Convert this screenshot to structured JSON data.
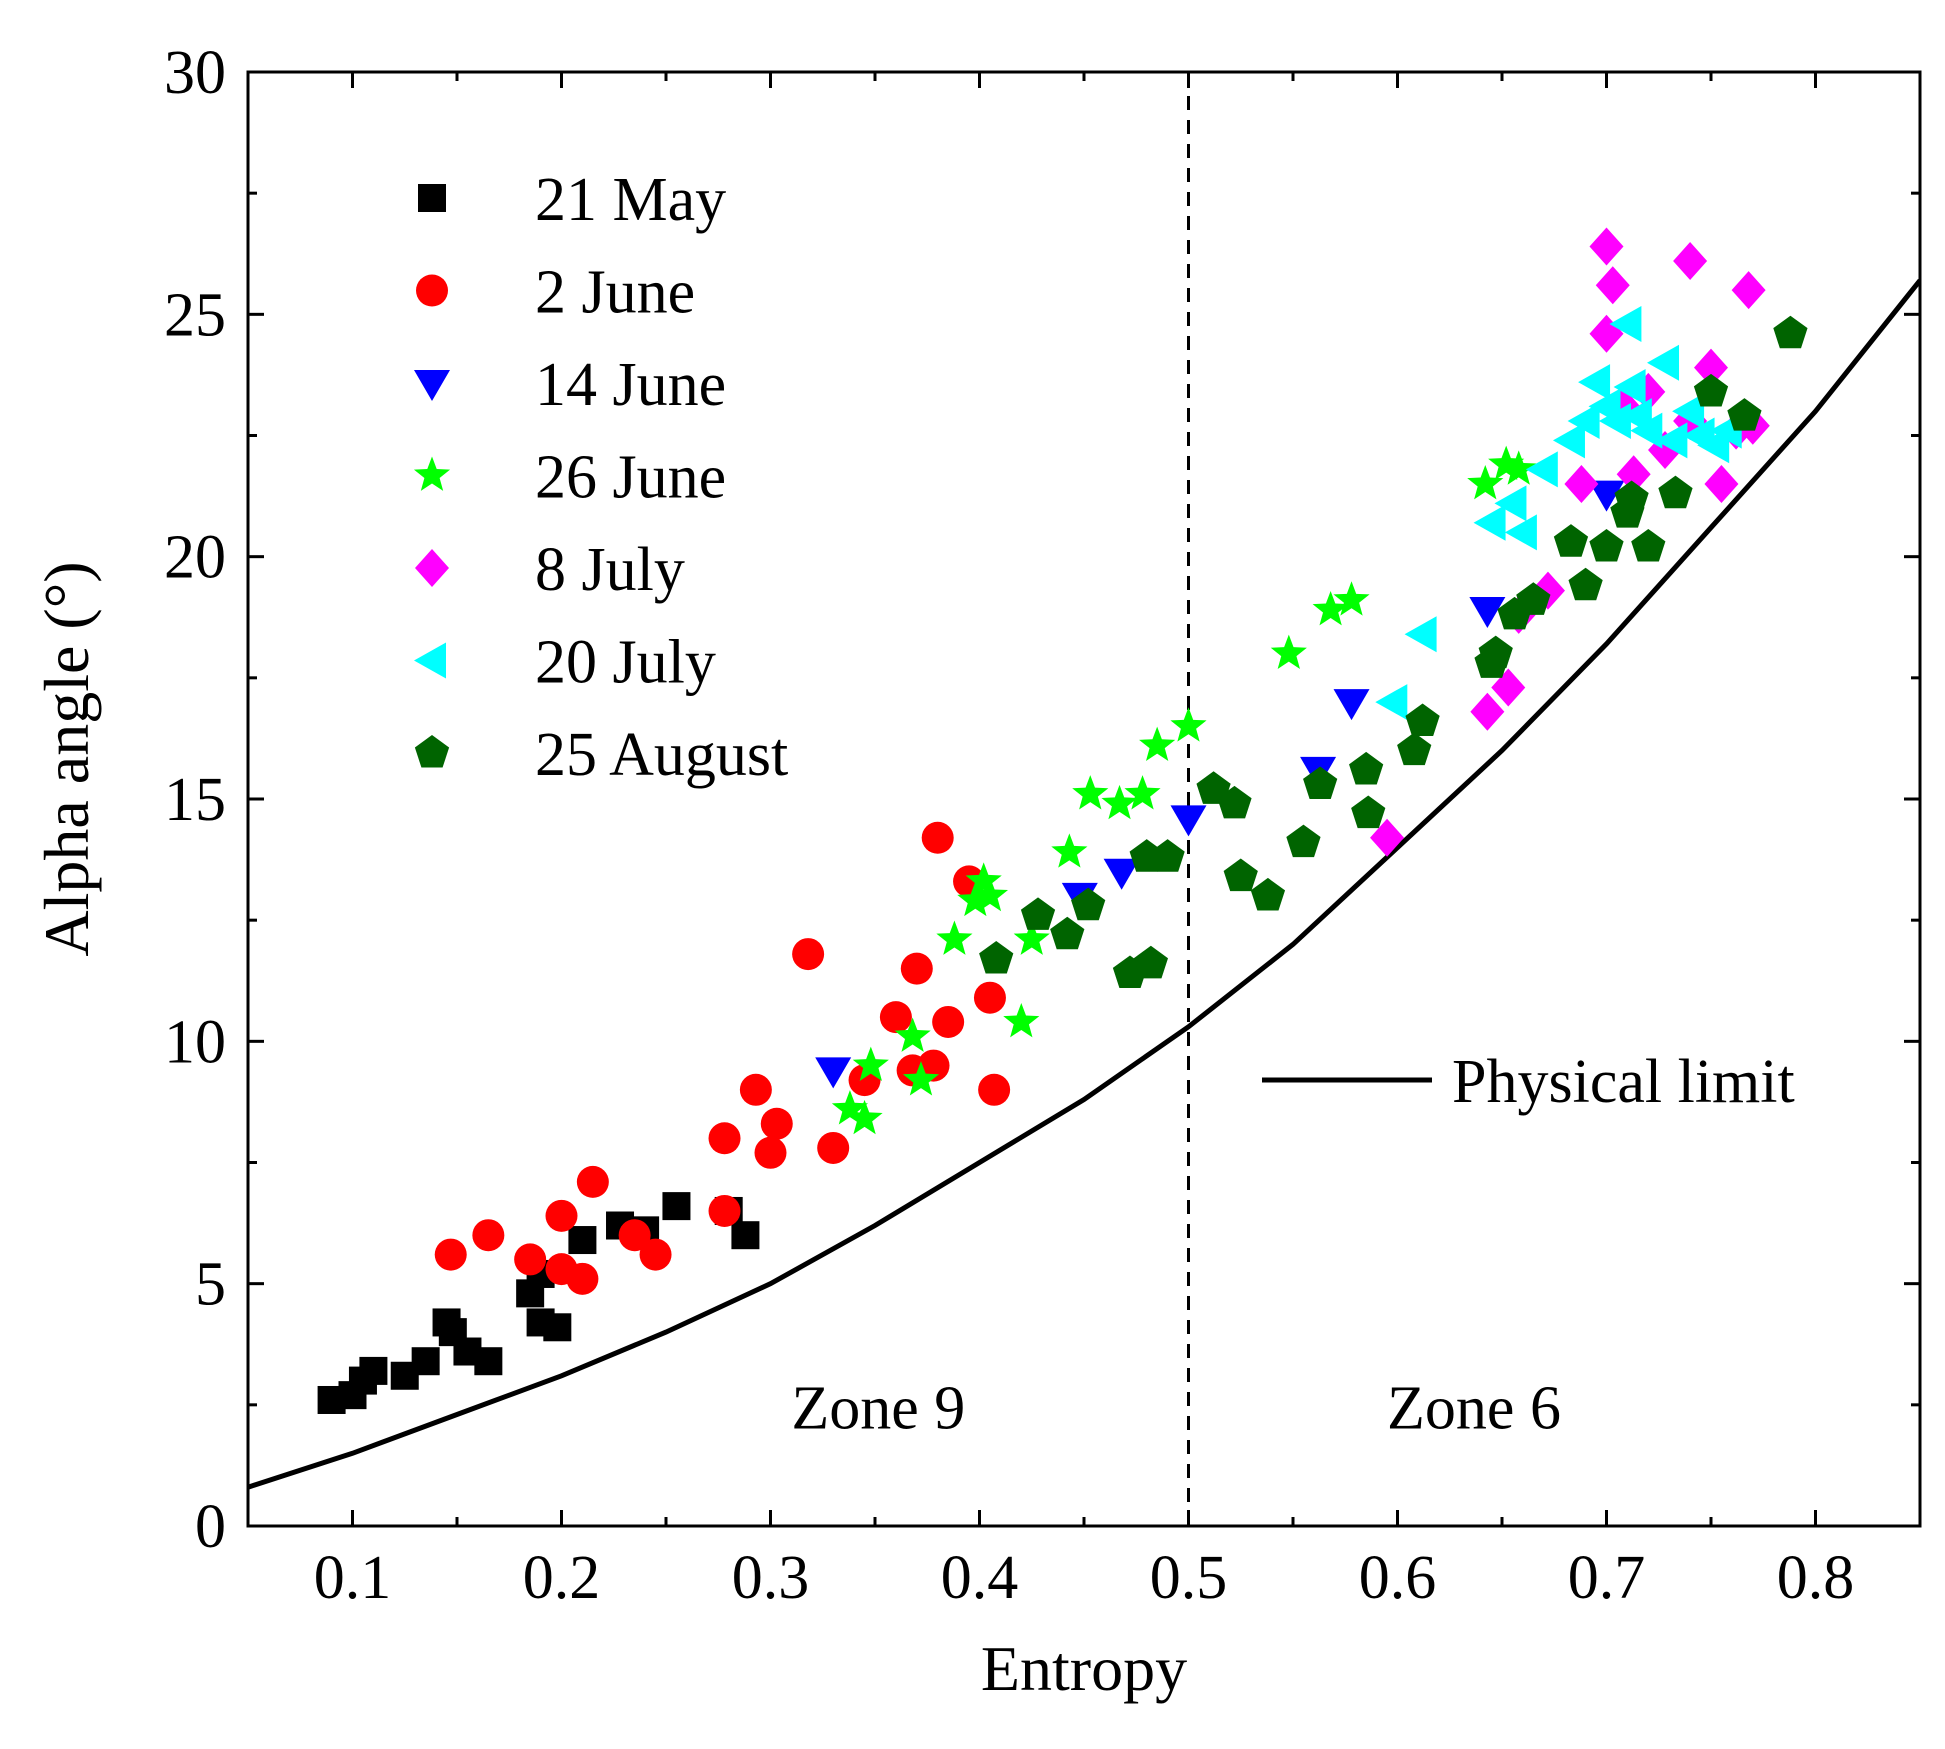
{
  "chart_data": {
    "type": "scatter",
    "xlabel": "Entropy",
    "ylabel": "Alpha angle (°)",
    "xlim": [
      0.05,
      0.85
    ],
    "ylim": [
      0,
      30
    ],
    "xticks": [
      0.1,
      0.2,
      0.3,
      0.4,
      0.5,
      0.6,
      0.7,
      0.8
    ],
    "xtick_labels": [
      "0.1",
      "0.2",
      "0.3",
      "0.4",
      "0.5",
      "0.6",
      "0.7",
      "0.8"
    ],
    "yticks": [
      0,
      5,
      10,
      15,
      20,
      25,
      30
    ],
    "ytick_labels": [
      "0",
      "5",
      "10",
      "15",
      "20",
      "25",
      "30"
    ],
    "legend_position": "top-left",
    "series": [
      {
        "name": "21 May",
        "marker": "square",
        "color": "#000000",
        "points": [
          [
            0.09,
            2.6
          ],
          [
            0.1,
            2.7
          ],
          [
            0.105,
            3.0
          ],
          [
            0.11,
            3.2
          ],
          [
            0.125,
            3.1
          ],
          [
            0.135,
            3.4
          ],
          [
            0.145,
            4.2
          ],
          [
            0.148,
            4.0
          ],
          [
            0.155,
            3.6
          ],
          [
            0.165,
            3.4
          ],
          [
            0.185,
            4.8
          ],
          [
            0.19,
            5.2
          ],
          [
            0.19,
            4.2
          ],
          [
            0.198,
            4.1
          ],
          [
            0.21,
            5.9
          ],
          [
            0.228,
            6.2
          ],
          [
            0.24,
            6.1
          ],
          [
            0.255,
            6.6
          ],
          [
            0.28,
            6.5
          ],
          [
            0.288,
            6.0
          ]
        ]
      },
      {
        "name": "2 June",
        "marker": "circle",
        "color": "#ff0000",
        "points": [
          [
            0.147,
            5.6
          ],
          [
            0.165,
            6.0
          ],
          [
            0.185,
            5.5
          ],
          [
            0.2,
            6.4
          ],
          [
            0.2,
            5.3
          ],
          [
            0.21,
            5.1
          ],
          [
            0.215,
            7.1
          ],
          [
            0.235,
            6.0
          ],
          [
            0.245,
            5.6
          ],
          [
            0.278,
            8.0
          ],
          [
            0.278,
            6.5
          ],
          [
            0.293,
            9.0
          ],
          [
            0.3,
            7.7
          ],
          [
            0.303,
            8.3
          ],
          [
            0.318,
            11.8
          ],
          [
            0.33,
            7.8
          ],
          [
            0.345,
            9.2
          ],
          [
            0.36,
            10.5
          ],
          [
            0.368,
            9.4
          ],
          [
            0.37,
            11.5
          ],
          [
            0.378,
            9.5
          ],
          [
            0.38,
            14.2
          ],
          [
            0.385,
            10.4
          ],
          [
            0.395,
            13.3
          ],
          [
            0.405,
            10.9
          ],
          [
            0.407,
            9.0
          ]
        ]
      },
      {
        "name": "14 June",
        "marker": "triangle-down",
        "color": "#0000ff",
        "points": [
          [
            0.33,
            9.4
          ],
          [
            0.448,
            13.0
          ],
          [
            0.468,
            13.5
          ],
          [
            0.5,
            14.6
          ],
          [
            0.562,
            15.6
          ],
          [
            0.578,
            17.0
          ],
          [
            0.643,
            18.9
          ],
          [
            0.7,
            21.3
          ]
        ]
      },
      {
        "name": "26 June",
        "marker": "star",
        "color": "#00ff00",
        "points": [
          [
            0.338,
            8.6
          ],
          [
            0.345,
            8.4
          ],
          [
            0.348,
            9.5
          ],
          [
            0.368,
            10.1
          ],
          [
            0.372,
            9.2
          ],
          [
            0.388,
            12.1
          ],
          [
            0.398,
            12.9
          ],
          [
            0.402,
            13.3
          ],
          [
            0.405,
            13.0
          ],
          [
            0.42,
            10.4
          ],
          [
            0.425,
            12.1
          ],
          [
            0.443,
            13.9
          ],
          [
            0.453,
            15.1
          ],
          [
            0.467,
            14.9
          ],
          [
            0.478,
            15.1
          ],
          [
            0.485,
            16.1
          ],
          [
            0.5,
            16.5
          ],
          [
            0.548,
            18.0
          ],
          [
            0.568,
            18.9
          ],
          [
            0.578,
            19.1
          ],
          [
            0.642,
            21.5
          ],
          [
            0.652,
            21.9
          ],
          [
            0.658,
            21.8
          ]
        ]
      },
      {
        "name": "8 July",
        "marker": "diamond",
        "color": "#ff00ff",
        "points": [
          [
            0.595,
            14.2
          ],
          [
            0.643,
            16.8
          ],
          [
            0.653,
            17.3
          ],
          [
            0.658,
            18.8
          ],
          [
            0.672,
            19.3
          ],
          [
            0.688,
            21.5
          ],
          [
            0.7,
            26.4
          ],
          [
            0.7,
            24.6
          ],
          [
            0.703,
            25.6
          ],
          [
            0.708,
            23.1
          ],
          [
            0.713,
            21.7
          ],
          [
            0.72,
            23.4
          ],
          [
            0.728,
            22.2
          ],
          [
            0.74,
            26.1
          ],
          [
            0.74,
            22.8
          ],
          [
            0.75,
            23.9
          ],
          [
            0.755,
            21.5
          ],
          [
            0.762,
            22.6
          ],
          [
            0.768,
            25.5
          ],
          [
            0.77,
            22.7
          ]
        ]
      },
      {
        "name": "20 July",
        "marker": "triangle-left",
        "color": "#00ffff",
        "points": [
          [
            0.598,
            17.0
          ],
          [
            0.612,
            18.4
          ],
          [
            0.645,
            20.7
          ],
          [
            0.655,
            21.1
          ],
          [
            0.66,
            20.5
          ],
          [
            0.67,
            21.8
          ],
          [
            0.683,
            22.4
          ],
          [
            0.69,
            22.8
          ],
          [
            0.695,
            23.6
          ],
          [
            0.7,
            23.1
          ],
          [
            0.705,
            22.8
          ],
          [
            0.71,
            24.8
          ],
          [
            0.712,
            23.5
          ],
          [
            0.715,
            22.9
          ],
          [
            0.72,
            22.6
          ],
          [
            0.728,
            24.0
          ],
          [
            0.732,
            22.4
          ],
          [
            0.74,
            23.0
          ],
          [
            0.745,
            22.5
          ],
          [
            0.752,
            22.3
          ],
          [
            0.758,
            22.6
          ]
        ]
      },
      {
        "name": "25 August",
        "marker": "pentagon",
        "color": "#006400",
        "points": [
          [
            0.408,
            11.7
          ],
          [
            0.428,
            12.6
          ],
          [
            0.442,
            12.2
          ],
          [
            0.452,
            12.8
          ],
          [
            0.472,
            11.4
          ],
          [
            0.482,
            11.6
          ],
          [
            0.48,
            13.8
          ],
          [
            0.49,
            13.8
          ],
          [
            0.512,
            15.2
          ],
          [
            0.522,
            14.9
          ],
          [
            0.525,
            13.4
          ],
          [
            0.538,
            13.0
          ],
          [
            0.555,
            14.1
          ],
          [
            0.563,
            15.3
          ],
          [
            0.585,
            15.6
          ],
          [
            0.586,
            14.7
          ],
          [
            0.608,
            16.0
          ],
          [
            0.612,
            16.6
          ],
          [
            0.645,
            17.8
          ],
          [
            0.647,
            18.0
          ],
          [
            0.656,
            18.8
          ],
          [
            0.665,
            19.1
          ],
          [
            0.683,
            20.3
          ],
          [
            0.69,
            19.4
          ],
          [
            0.7,
            20.2
          ],
          [
            0.71,
            20.9
          ],
          [
            0.712,
            21.2
          ],
          [
            0.72,
            20.2
          ],
          [
            0.733,
            21.3
          ],
          [
            0.75,
            23.4
          ],
          [
            0.766,
            22.9
          ],
          [
            0.788,
            24.6
          ]
        ]
      }
    ],
    "reference_line": {
      "name": "Physical limit",
      "color": "#000000",
      "points": [
        [
          0.05,
          0.8
        ],
        [
          0.1,
          1.5
        ],
        [
          0.15,
          2.3
        ],
        [
          0.2,
          3.1
        ],
        [
          0.25,
          4.0
        ],
        [
          0.3,
          5.0
        ],
        [
          0.35,
          6.2
        ],
        [
          0.4,
          7.5
        ],
        [
          0.45,
          8.8
        ],
        [
          0.5,
          10.3
        ],
        [
          0.55,
          12.0
        ],
        [
          0.6,
          14.0
        ],
        [
          0.65,
          16.0
        ],
        [
          0.7,
          18.2
        ],
        [
          0.75,
          20.6
        ],
        [
          0.8,
          23.0
        ],
        [
          0.85,
          25.7
        ]
      ]
    },
    "divider": {
      "x": 0.5,
      "style": "dashed"
    },
    "annotations": [
      {
        "text": "Zone 9",
        "x": 0.31,
        "y": 2.45
      },
      {
        "text": "Zone 6",
        "x": 0.595,
        "y": 2.45
      }
    ]
  }
}
